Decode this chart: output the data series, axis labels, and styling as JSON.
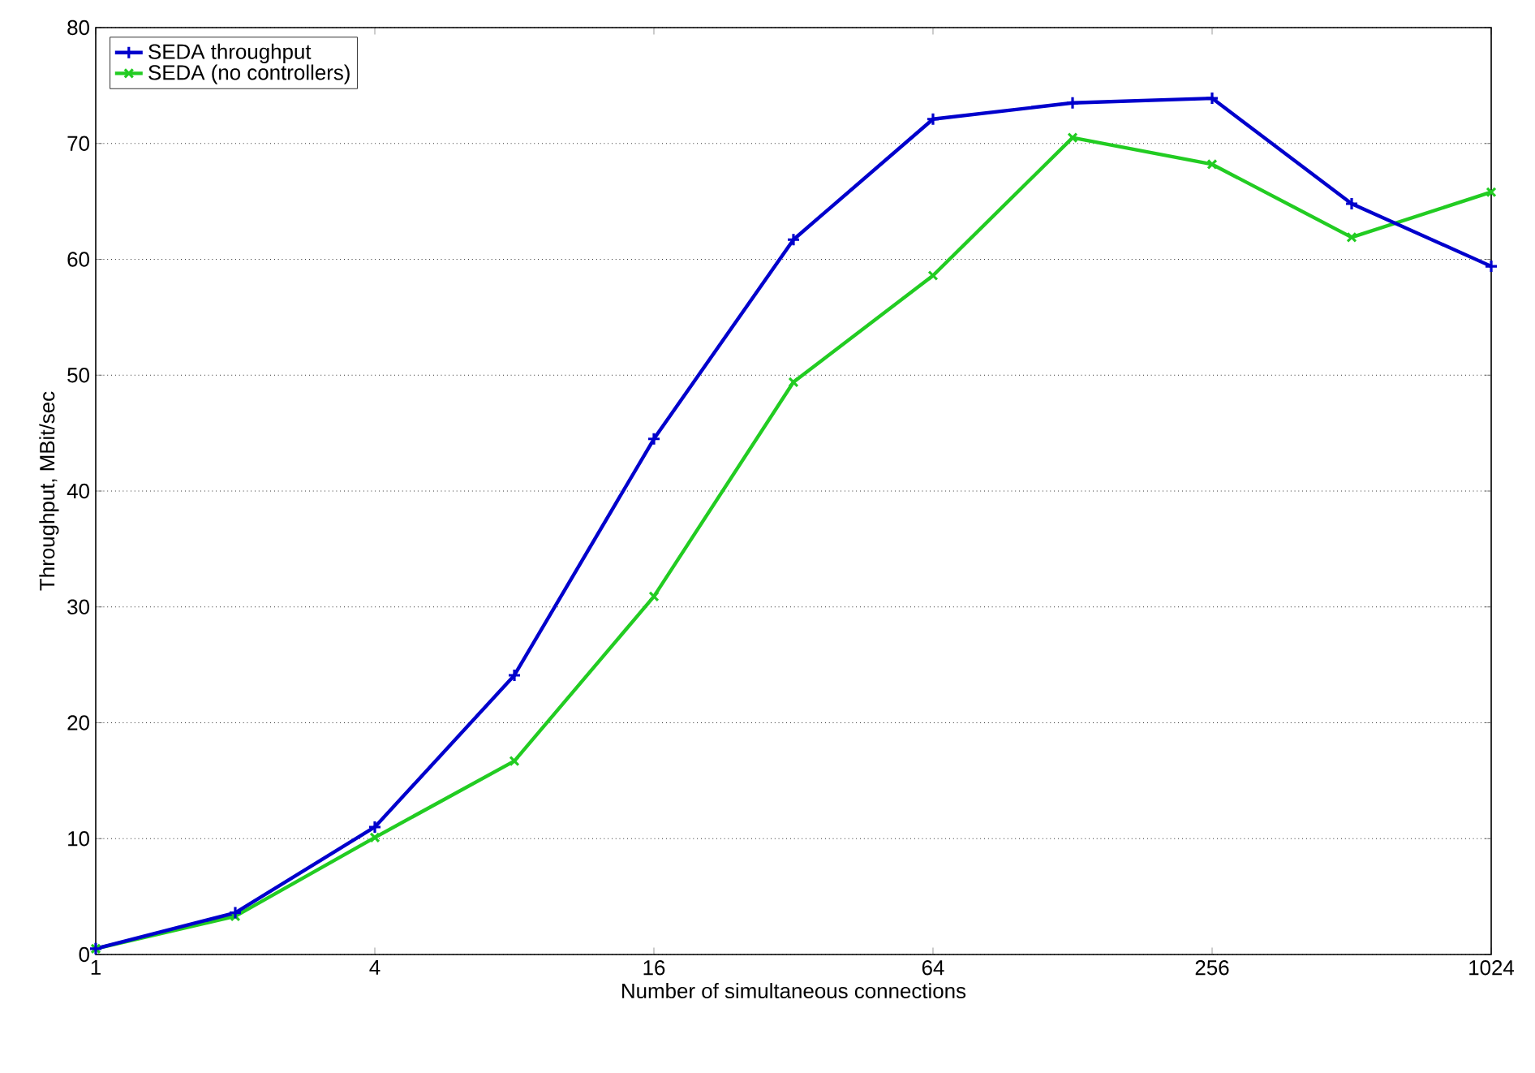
{
  "chart_data": {
    "type": "line",
    "xlabel": "Number of simultaneous connections",
    "ylabel": "Throughput, MBit/sec",
    "x": [
      1,
      2,
      4,
      8,
      16,
      32,
      64,
      128,
      256,
      512,
      1024
    ],
    "series": [
      {
        "name": "SEDA throughput",
        "color": "#0000cc",
        "marker": "plus",
        "values": [
          0.5,
          3.6,
          11.0,
          24.1,
          44.5,
          61.7,
          72.1,
          73.5,
          73.9,
          64.8,
          59.4
        ]
      },
      {
        "name": "SEDA (no controllers)",
        "color": "#22cc22",
        "marker": "cross",
        "values": [
          0.5,
          3.3,
          10.1,
          16.7,
          30.9,
          49.4,
          58.6,
          70.5,
          68.2,
          61.9,
          65.8
        ]
      }
    ],
    "log": "x",
    "xlim": [
      1,
      1024
    ],
    "xticks": [
      1,
      4,
      16,
      64,
      256,
      1024
    ],
    "ylim": [
      0,
      80
    ],
    "yticks": [
      0,
      10,
      20,
      30,
      40,
      50,
      60,
      70,
      80
    ],
    "grid": "y",
    "legend": "top left",
    "line_style": "solid"
  }
}
